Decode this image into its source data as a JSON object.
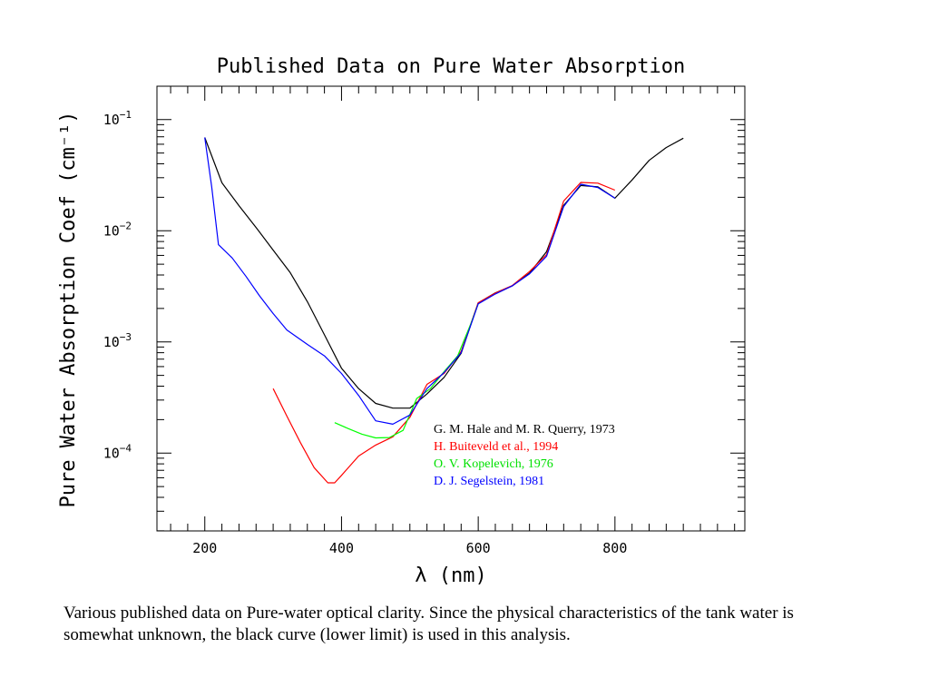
{
  "chart_data": {
    "type": "line",
    "title": "Published Data on Pure Water Absorption",
    "xlabel": "λ (nm)",
    "ylabel": "Pure Water Absorption Coef (cm⁻¹)",
    "xlim": [
      130,
      990
    ],
    "ylim_log10": [
      -4.7,
      -0.7
    ],
    "yscale": "log",
    "x_ticks": [
      200,
      400,
      600,
      800
    ],
    "x_tick_labels": [
      "200",
      "400",
      "600",
      "800"
    ],
    "y_ticks": [
      0.0001,
      0.001,
      0.01,
      0.1
    ],
    "y_tick_labels": [
      {
        "base": "10",
        "exp": "−4"
      },
      {
        "base": "10",
        "exp": "−3"
      },
      {
        "base": "10",
        "exp": "−2"
      },
      {
        "base": "10",
        "exp": "−1"
      }
    ],
    "legend_position": "lower-right",
    "series": [
      {
        "name": "G. M. Hale and M. R. Querry, 1973",
        "color": "#000000",
        "points": [
          [
            200,
            0.069
          ],
          [
            225,
            0.027
          ],
          [
            250,
            0.0168
          ],
          [
            275,
            0.0107
          ],
          [
            300,
            0.0067
          ],
          [
            325,
            0.0042
          ],
          [
            350,
            0.0023
          ],
          [
            375,
            0.00116
          ],
          [
            400,
            0.00058
          ],
          [
            425,
            0.00038
          ],
          [
            450,
            0.00028
          ],
          [
            475,
            0.000254
          ],
          [
            500,
            0.000254
          ],
          [
            525,
            0.00034
          ],
          [
            550,
            0.00048
          ],
          [
            575,
            0.00079
          ],
          [
            600,
            0.00224
          ],
          [
            625,
            0.00276
          ],
          [
            650,
            0.0032
          ],
          [
            675,
            0.00415
          ],
          [
            700,
            0.0065
          ],
          [
            725,
            0.0169
          ],
          [
            750,
            0.0255
          ],
          [
            775,
            0.0248
          ],
          [
            800,
            0.0196
          ],
          [
            825,
            0.0286
          ],
          [
            850,
            0.043
          ],
          [
            875,
            0.056
          ],
          [
            900,
            0.068
          ]
        ]
      },
      {
        "name": "H. Buiteveld et al., 1994",
        "color": "#ff0000",
        "points": [
          [
            300,
            0.00038
          ],
          [
            320,
            0.000215
          ],
          [
            340,
            0.000124
          ],
          [
            360,
            7.4e-05
          ],
          [
            380,
            5.4e-05
          ],
          [
            390,
            5.4e-05
          ],
          [
            400,
            6.3e-05
          ],
          [
            425,
            9.4e-05
          ],
          [
            450,
            0.000118
          ],
          [
            475,
            0.00014
          ],
          [
            500,
            0.00021
          ],
          [
            525,
            0.000415
          ],
          [
            550,
            0.00052
          ],
          [
            575,
            0.00082
          ],
          [
            600,
            0.00225
          ],
          [
            625,
            0.00275
          ],
          [
            650,
            0.00322
          ],
          [
            675,
            0.0043
          ],
          [
            700,
            0.0061
          ],
          [
            725,
            0.0185
          ],
          [
            750,
            0.0272
          ],
          [
            775,
            0.0268
          ],
          [
            800,
            0.0232
          ]
        ]
      },
      {
        "name": "O. V. Kopelevich, 1976",
        "color": "#00ff00",
        "points": [
          [
            390,
            0.000188
          ],
          [
            410,
            0.000166
          ],
          [
            430,
            0.000148
          ],
          [
            450,
            0.000137
          ],
          [
            470,
            0.000138
          ],
          [
            490,
            0.00016
          ],
          [
            510,
            0.00031
          ],
          [
            530,
            0.00038
          ],
          [
            550,
            0.00054
          ],
          [
            570,
            0.00075
          ],
          [
            590,
            0.0015
          ],
          [
            600,
            0.0022
          ]
        ]
      },
      {
        "name": "D. J. Segelstein, 1981",
        "color": "#0000ff",
        "points": [
          [
            200,
            0.069
          ],
          [
            210,
            0.025
          ],
          [
            220,
            0.0075
          ],
          [
            240,
            0.0057
          ],
          [
            260,
            0.0039
          ],
          [
            280,
            0.0026
          ],
          [
            300,
            0.0018
          ],
          [
            320,
            0.00128
          ],
          [
            350,
            0.00095
          ],
          [
            375,
            0.00075
          ],
          [
            400,
            0.00052
          ],
          [
            425,
            0.00033
          ],
          [
            450,
            0.000195
          ],
          [
            475,
            0.000182
          ],
          [
            500,
            0.00022
          ],
          [
            525,
            0.00038
          ],
          [
            550,
            0.00053
          ],
          [
            575,
            0.0008
          ],
          [
            600,
            0.0022
          ],
          [
            625,
            0.0027
          ],
          [
            650,
            0.0032
          ],
          [
            675,
            0.0041
          ],
          [
            700,
            0.0059
          ],
          [
            725,
            0.0165
          ],
          [
            750,
            0.0262
          ],
          [
            775,
            0.0245
          ],
          [
            800,
            0.0196
          ]
        ]
      }
    ]
  },
  "caption": "Various published data on Pure-water optical clarity. Since the physical characteristics of the tank water is somewhat unknown, the black curve (lower limit) is used in this analysis."
}
